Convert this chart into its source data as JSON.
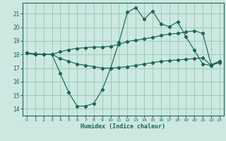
{
  "xlabel": "Humidex (Indice chaleur)",
  "xlim": [
    -0.5,
    23.5
  ],
  "ylim": [
    13.5,
    21.8
  ],
  "yticks": [
    14,
    15,
    16,
    17,
    18,
    19,
    20,
    21
  ],
  "xticks": [
    0,
    1,
    2,
    3,
    4,
    5,
    6,
    7,
    8,
    9,
    10,
    11,
    12,
    13,
    14,
    15,
    16,
    17,
    18,
    19,
    20,
    21,
    22,
    23
  ],
  "bg_color": "#cce8e0",
  "grid_color": "#99ccbb",
  "line_color": "#1a6655",
  "line1_y": [
    18.1,
    18.05,
    18.0,
    18.0,
    16.6,
    15.2,
    14.2,
    14.2,
    14.4,
    15.4,
    17.0,
    18.9,
    21.1,
    21.45,
    20.6,
    21.2,
    20.25,
    20.05,
    20.4,
    19.3,
    18.3,
    17.3,
    17.2,
    17.5
  ],
  "line2_y": [
    18.1,
    18.0,
    18.0,
    18.0,
    17.7,
    17.5,
    17.3,
    17.2,
    17.1,
    17.0,
    17.0,
    17.05,
    17.1,
    17.2,
    17.3,
    17.4,
    17.5,
    17.55,
    17.6,
    17.65,
    17.7,
    17.75,
    17.2,
    17.4
  ],
  "line3_y": [
    18.1,
    18.0,
    18.0,
    18.0,
    18.2,
    18.35,
    18.45,
    18.5,
    18.55,
    18.55,
    18.6,
    18.75,
    18.95,
    19.05,
    19.15,
    19.25,
    19.4,
    19.5,
    19.55,
    19.65,
    19.75,
    19.55,
    17.25,
    17.5
  ]
}
